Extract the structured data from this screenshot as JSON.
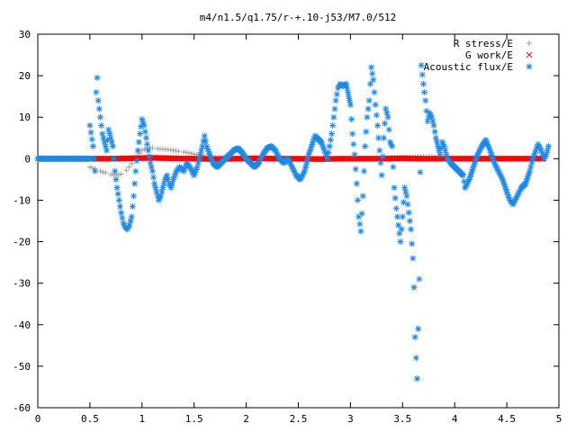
{
  "chart_data": {
    "type": "scatter",
    "title": "m4/n1.5/q1.75/r-+.10-j53/M7.0/512",
    "xlabel": "",
    "ylabel": "",
    "xlim": [
      0,
      5
    ],
    "ylim": [
      -60,
      30
    ],
    "xticks": [
      "0",
      "0.5",
      "1",
      "1.5",
      "2",
      "2.5",
      "3",
      "3.5",
      "4",
      "4.5",
      "5"
    ],
    "yticks": [
      "30",
      "20",
      "10",
      "0",
      "-10",
      "-20",
      "-30",
      "-40",
      "-50",
      "-60"
    ],
    "grid": false,
    "legend_position": "top-right",
    "series": [
      {
        "name": "R stress/E",
        "marker": "+",
        "color": "#a0a0a0",
        "points": [
          [
            0.5,
            -2.0
          ],
          [
            0.55,
            -2.5
          ],
          [
            0.6,
            -3.0
          ],
          [
            0.65,
            -3.4
          ],
          [
            0.7,
            -3.8
          ],
          [
            0.75,
            -4.0
          ],
          [
            0.8,
            -3.7
          ],
          [
            0.85,
            -2.8
          ],
          [
            0.9,
            -1.2
          ],
          [
            0.95,
            0.5
          ],
          [
            1.0,
            2.0
          ],
          [
            1.05,
            2.6
          ],
          [
            1.1,
            2.6
          ],
          [
            1.15,
            2.4
          ],
          [
            1.2,
            2.3
          ],
          [
            1.25,
            2.2
          ],
          [
            1.3,
            2.0
          ],
          [
            1.35,
            1.8
          ],
          [
            1.4,
            1.6
          ],
          [
            1.45,
            1.4
          ],
          [
            1.5,
            1.1
          ],
          [
            1.6,
            0.7
          ],
          [
            1.7,
            0.4
          ],
          [
            1.8,
            0.2
          ],
          [
            2.0,
            0.0
          ],
          [
            2.5,
            0.0
          ],
          [
            3.0,
            0.0
          ],
          [
            3.5,
            0.3
          ],
          [
            3.7,
            0.5
          ],
          [
            4.0,
            0.2
          ],
          [
            4.5,
            0.1
          ],
          [
            4.85,
            0.0
          ]
        ]
      },
      {
        "name": "G work/E",
        "marker": "x",
        "color": "#ff0000",
        "points": [
          [
            0.5,
            0.0
          ],
          [
            0.7,
            0.0
          ],
          [
            0.9,
            0.1
          ],
          [
            1.1,
            0.2
          ],
          [
            1.3,
            0.1
          ],
          [
            1.5,
            0.0
          ],
          [
            1.7,
            -0.1
          ],
          [
            1.9,
            0.0
          ],
          [
            2.1,
            0.1
          ],
          [
            2.3,
            0.0
          ],
          [
            2.5,
            0.0
          ],
          [
            2.7,
            -0.1
          ],
          [
            2.9,
            0.0
          ],
          [
            3.1,
            0.0
          ],
          [
            3.3,
            0.0
          ],
          [
            3.5,
            0.1
          ],
          [
            3.7,
            0.0
          ],
          [
            3.9,
            0.0
          ],
          [
            4.1,
            0.0
          ],
          [
            4.3,
            0.0
          ],
          [
            4.5,
            0.0
          ],
          [
            4.7,
            0.0
          ],
          [
            4.85,
            0.0
          ]
        ]
      },
      {
        "name": "Acoustic flux/E",
        "marker": "*",
        "color": "#1e88e5",
        "points": [
          [
            0.0,
            0.0
          ],
          [
            0.05,
            0.0
          ],
          [
            0.1,
            0.0
          ],
          [
            0.15,
            0.0
          ],
          [
            0.2,
            0.0
          ],
          [
            0.25,
            0.0
          ],
          [
            0.3,
            0.0
          ],
          [
            0.35,
            0.0
          ],
          [
            0.4,
            0.0
          ],
          [
            0.45,
            0.0
          ],
          [
            0.5,
            0.0
          ],
          [
            0.5,
            8.0
          ],
          [
            0.53,
            3.0
          ],
          [
            0.55,
            -3.0
          ],
          [
            0.56,
            16.0
          ],
          [
            0.57,
            19.5
          ],
          [
            0.58,
            14.0
          ],
          [
            0.6,
            10.0
          ],
          [
            0.62,
            6.0
          ],
          [
            0.64,
            4.0
          ],
          [
            0.66,
            2.0
          ],
          [
            0.68,
            7.0
          ],
          [
            0.7,
            5.0
          ],
          [
            0.72,
            3.0
          ],
          [
            0.74,
            -3.0
          ],
          [
            0.76,
            -7.0
          ],
          [
            0.78,
            -10.0
          ],
          [
            0.8,
            -13.0
          ],
          [
            0.82,
            -15.5
          ],
          [
            0.84,
            -16.5
          ],
          [
            0.86,
            -17.0
          ],
          [
            0.88,
            -16.0
          ],
          [
            0.9,
            -14.0
          ],
          [
            0.92,
            -9.0
          ],
          [
            0.94,
            -3.0
          ],
          [
            0.96,
            2.0
          ],
          [
            0.98,
            6.0
          ],
          [
            1.0,
            9.5
          ],
          [
            1.02,
            8.0
          ],
          [
            1.04,
            5.0
          ],
          [
            1.06,
            2.0
          ],
          [
            1.08,
            -1.0
          ],
          [
            1.1,
            -3.0
          ],
          [
            1.12,
            -6.0
          ],
          [
            1.14,
            -8.0
          ],
          [
            1.16,
            -10.0
          ],
          [
            1.18,
            -9.0
          ],
          [
            1.2,
            -7.0
          ],
          [
            1.22,
            -5.0
          ],
          [
            1.24,
            -4.0
          ],
          [
            1.26,
            -6.0
          ],
          [
            1.28,
            -7.0
          ],
          [
            1.3,
            -5.0
          ],
          [
            1.33,
            -3.0
          ],
          [
            1.36,
            -2.0
          ],
          [
            1.4,
            -3.0
          ],
          [
            1.43,
            -1.0
          ],
          [
            1.46,
            -2.0
          ],
          [
            1.5,
            -4.0
          ],
          [
            1.53,
            -2.0
          ],
          [
            1.56,
            1.0
          ],
          [
            1.58,
            3.0
          ],
          [
            1.6,
            5.5
          ],
          [
            1.62,
            3.0
          ],
          [
            1.65,
            1.0
          ],
          [
            1.68,
            -1.0
          ],
          [
            1.72,
            -2.0
          ],
          [
            1.76,
            -1.0
          ],
          [
            1.8,
            0.0
          ],
          [
            1.84,
            1.0
          ],
          [
            1.88,
            2.0
          ],
          [
            1.92,
            2.5
          ],
          [
            1.96,
            1.5
          ],
          [
            2.0,
            0.0
          ],
          [
            2.04,
            -1.0
          ],
          [
            2.08,
            -2.0
          ],
          [
            2.12,
            -1.0
          ],
          [
            2.16,
            1.0
          ],
          [
            2.2,
            2.5
          ],
          [
            2.24,
            3.0
          ],
          [
            2.28,
            2.0
          ],
          [
            2.32,
            0.0
          ],
          [
            2.36,
            -1.0
          ],
          [
            2.4,
            0.0
          ],
          [
            2.44,
            -2.0
          ],
          [
            2.48,
            -4.0
          ],
          [
            2.52,
            -5.0
          ],
          [
            2.56,
            -3.0
          ],
          [
            2.6,
            1.0
          ],
          [
            2.64,
            4.0
          ],
          [
            2.66,
            5.5
          ],
          [
            2.68,
            5.0
          ],
          [
            2.72,
            4.0
          ],
          [
            2.75,
            2.0
          ],
          [
            2.78,
            0.0
          ],
          [
            2.8,
            3.0
          ],
          [
            2.82,
            6.0
          ],
          [
            2.84,
            10.0
          ],
          [
            2.86,
            14.0
          ],
          [
            2.88,
            17.0
          ],
          [
            2.9,
            18.0
          ],
          [
            2.93,
            17.5
          ],
          [
            2.96,
            18.0
          ],
          [
            3.0,
            13.0
          ],
          [
            3.02,
            6.0
          ],
          [
            3.04,
            1.0
          ],
          [
            3.06,
            -6.0
          ],
          [
            3.08,
            -14.0
          ],
          [
            3.1,
            -17.5
          ],
          [
            3.12,
            -9.0
          ],
          [
            3.14,
            3.0
          ],
          [
            3.16,
            10.0
          ],
          [
            3.18,
            14.0
          ],
          [
            3.2,
            22.0
          ],
          [
            3.22,
            19.0
          ],
          [
            3.24,
            13.0
          ],
          [
            3.26,
            8.0
          ],
          [
            3.28,
            2.0
          ],
          [
            3.3,
            -4.0
          ],
          [
            3.32,
            5.0
          ],
          [
            3.34,
            12.0
          ],
          [
            3.36,
            10.0
          ],
          [
            3.38,
            4.0
          ],
          [
            3.4,
            3.0
          ],
          [
            3.42,
            -7.0
          ],
          [
            3.44,
            -12.0
          ],
          [
            3.46,
            -16.0
          ],
          [
            3.48,
            -20.0
          ],
          [
            3.5,
            -14.0
          ],
          [
            3.52,
            -7.0
          ],
          [
            3.54,
            -9.0
          ],
          [
            3.56,
            -13.0
          ],
          [
            3.58,
            -17.0
          ],
          [
            3.6,
            -24.0
          ],
          [
            3.61,
            -31.0
          ],
          [
            3.62,
            -43.0
          ],
          [
            3.64,
            -53.0
          ],
          [
            3.66,
            -29.0
          ],
          [
            3.68,
            22.5
          ],
          [
            3.7,
            18.0
          ],
          [
            3.72,
            14.0
          ],
          [
            3.74,
            9.0
          ],
          [
            3.76,
            11.0
          ],
          [
            3.78,
            10.0
          ],
          [
            3.8,
            8.0
          ],
          [
            3.82,
            5.0
          ],
          [
            3.84,
            3.0
          ],
          [
            3.86,
            1.0
          ],
          [
            3.88,
            4.0
          ],
          [
            3.9,
            3.0
          ],
          [
            3.93,
            0.0
          ],
          [
            3.96,
            -1.0
          ],
          [
            4.0,
            -2.0
          ],
          [
            4.04,
            -3.0
          ],
          [
            4.08,
            -4.0
          ],
          [
            4.1,
            -7.0
          ],
          [
            4.14,
            -5.0
          ],
          [
            4.18,
            -2.0
          ],
          [
            4.22,
            1.0
          ],
          [
            4.26,
            3.0
          ],
          [
            4.3,
            4.5
          ],
          [
            4.34,
            2.0
          ],
          [
            4.38,
            -1.0
          ],
          [
            4.42,
            -3.0
          ],
          [
            4.46,
            -5.0
          ],
          [
            4.5,
            -8.0
          ],
          [
            4.53,
            -10.0
          ],
          [
            4.56,
            -11.0
          ],
          [
            4.6,
            -9.0
          ],
          [
            4.64,
            -7.0
          ],
          [
            4.68,
            -6.0
          ],
          [
            4.72,
            -3.0
          ],
          [
            4.75,
            0.0
          ],
          [
            4.78,
            2.0
          ],
          [
            4.8,
            3.5
          ],
          [
            4.83,
            2.0
          ],
          [
            4.86,
            0.0
          ],
          [
            4.88,
            1.0
          ],
          [
            4.9,
            3.0
          ]
        ]
      }
    ]
  }
}
